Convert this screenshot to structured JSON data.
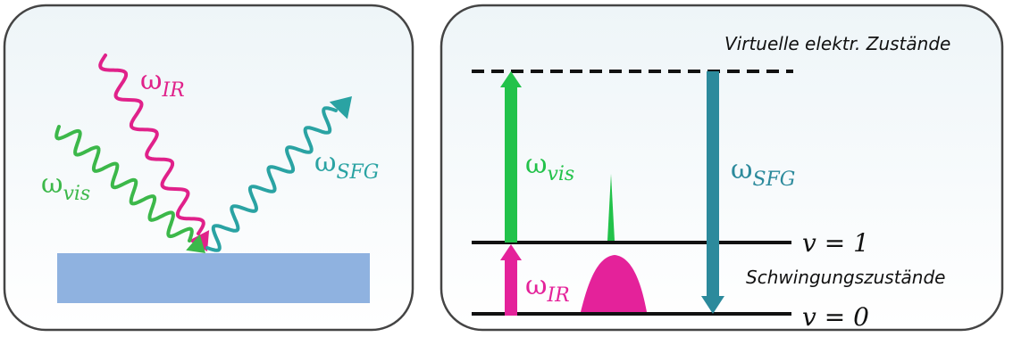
{
  "left_panel": {
    "labels": {
      "ir": {
        "base": "ω",
        "sub": "IR"
      },
      "vis": {
        "base": "ω",
        "sub": "vis"
      },
      "sfg": {
        "base": "ω",
        "sub": "SFG"
      }
    },
    "colors": {
      "ir": "#e0218a",
      "vis": "#3cb84a",
      "sfg": "#2aa3a3",
      "surface": "#8fb2e0",
      "frame": "#444444"
    }
  },
  "right_panel": {
    "virtual_label": "Virtuelle elektr. Zustände",
    "vib_label": "Schwingungszustände",
    "level_v1": "𝑣 = 1",
    "level_v0": "𝑣 = 0",
    "arrows": {
      "vis": {
        "base": "ω",
        "sub": "vis"
      },
      "ir": {
        "base": "ω",
        "sub": "IR"
      },
      "sfg": {
        "base": "ω",
        "sub": "SFG"
      }
    },
    "colors": {
      "vis": "#22c24a",
      "ir": "#e4229a",
      "sfg": "#2c8a9c"
    }
  }
}
